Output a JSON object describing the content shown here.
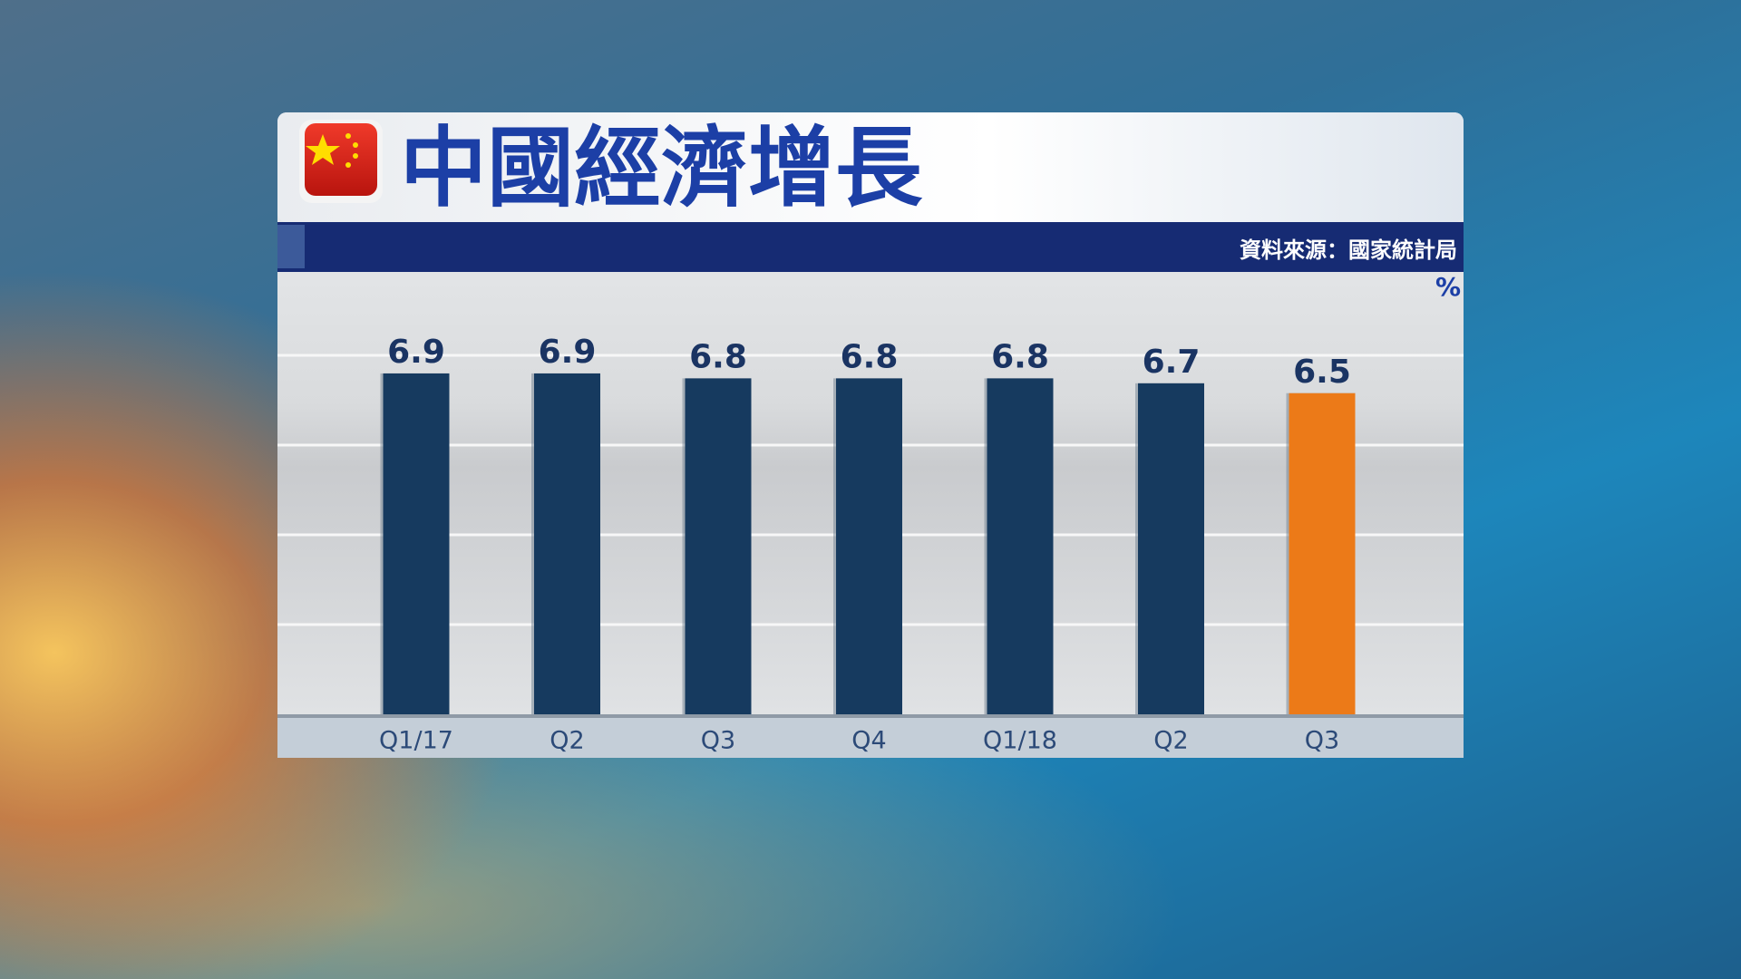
{
  "chart_data": {
    "type": "bar",
    "title": "中國經濟增長",
    "source": "資料來源：國家統計局",
    "unit": "%",
    "categories": [
      "Q1/17",
      "Q2",
      "Q3",
      "Q4",
      "Q1/18",
      "Q2",
      "Q3"
    ],
    "values": [
      6.9,
      6.9,
      6.8,
      6.8,
      6.8,
      6.7,
      6.5
    ],
    "colors": [
      "#163a5f",
      "#163a5f",
      "#163a5f",
      "#163a5f",
      "#163a5f",
      "#163a5f",
      "#ec7a18"
    ]
  }
}
